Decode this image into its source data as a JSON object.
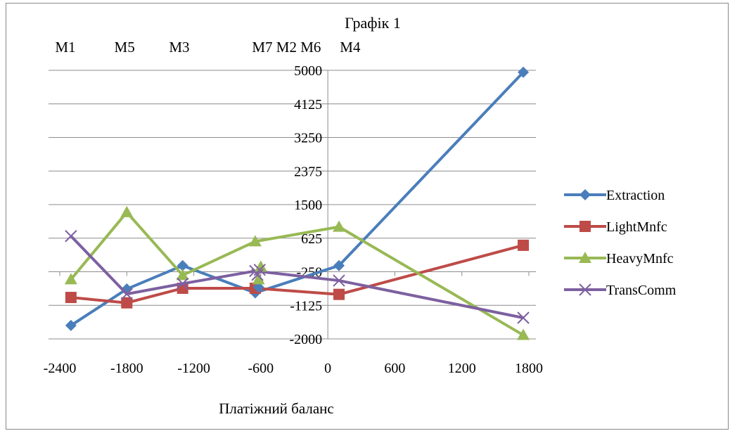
{
  "chart_data": {
    "type": "line",
    "title": "Графік 1",
    "xlabel": "Платіжний баланс",
    "ylabel": "",
    "xlim": [
      -2400,
      1800
    ],
    "ylim": [
      -2000,
      5000
    ],
    "x_ticks": [
      "-2400",
      "-1800",
      "-1200",
      "-600",
      "0",
      "600",
      "1200",
      "1800"
    ],
    "y_ticks": [
      "5000",
      "4125",
      "3250",
      "2375",
      "1500",
      "625",
      "-250",
      "-1125",
      "-2000"
    ],
    "x": [
      -2300,
      -1800,
      -1300,
      -650,
      100,
      1750
    ],
    "top_labels": [
      {
        "label": "M1",
        "x": -2350
      },
      {
        "label": "M5",
        "x": -1820
      },
      {
        "label": "M3",
        "x": -1330
      },
      {
        "label": "M7 M2 M6",
        "x": -370
      },
      {
        "label": "M4",
        "x": 200
      }
    ],
    "legend_position": "right",
    "grid": true,
    "series": [
      {
        "name": "Extraction",
        "color": "#4a7ebb",
        "marker": "diamond",
        "values": [
          -1650,
          -700,
          -90,
          -800,
          -90,
          4950
        ]
      },
      {
        "name": "LightMnfc",
        "color": "#be4b48",
        "marker": "square",
        "values": [
          -920,
          -1060,
          -680,
          -680,
          -840,
          440
        ]
      },
      {
        "name": "HeavyMnfc",
        "color": "#98b954",
        "marker": "triangle",
        "values": [
          -450,
          1300,
          -340,
          540,
          920,
          -1900
        ]
      },
      {
        "name": "TransComm",
        "color": "#7d60a0",
        "marker": "x",
        "values": [
          680,
          -830,
          -560,
          -230,
          -480,
          -1450
        ]
      }
    ],
    "extra_points": [
      {
        "series": "Extraction",
        "x": -620,
        "y": -650
      },
      {
        "series": "HeavyMnfc",
        "x": -620,
        "y": -450
      },
      {
        "series": "HeavyMnfc",
        "x": -600,
        "y": -120
      },
      {
        "series": "TransComm",
        "x": -630,
        "y": -330
      },
      {
        "series": "TransComm",
        "x": -610,
        "y": -200
      }
    ]
  }
}
